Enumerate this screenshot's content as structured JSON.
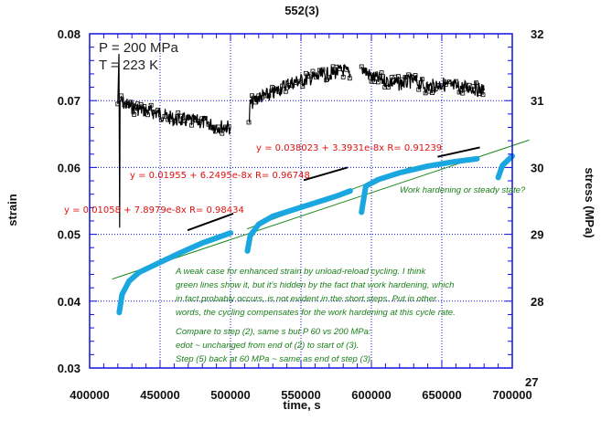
{
  "chart_data": {
    "type": "line",
    "title": "552(3)",
    "xlabel": "time, s",
    "ylabel": "strain",
    "y2label": "stress (MPa)",
    "xlim": [
      400000,
      700000
    ],
    "ylim": [
      0.03,
      0.08
    ],
    "y2lim": [
      27,
      32
    ],
    "xticks": [
      "400000",
      "450000",
      "500000",
      "550000",
      "600000",
      "650000",
      "700000"
    ],
    "yticks": [
      "0.08",
      "0.07",
      "0.06",
      "0.05",
      "0.04",
      "0.03"
    ],
    "y2ticks": [
      "32",
      "31",
      "30",
      "29",
      "28",
      "27"
    ],
    "grid": true,
    "conditions": [
      "P = 200 MPa",
      "T = 223 K"
    ],
    "series": [
      {
        "name": "stress",
        "axis": "right",
        "color": "#000000",
        "segments": [
          [
            [
              420000,
              30.95
            ],
            [
              420800,
              31.7
            ],
            [
              421300,
              29.1
            ],
            [
              421600,
              31.0
            ],
            [
              425000,
              30.95
            ],
            [
              430000,
              30.9
            ],
            [
              440000,
              30.85
            ],
            [
              450000,
              30.8
            ],
            [
              460000,
              30.72
            ],
            [
              470000,
              30.7
            ],
            [
              480000,
              30.68
            ],
            [
              490000,
              30.62
            ],
            [
              500000,
              30.6
            ]
          ],
          [
            [
              513000,
              30.6
            ],
            [
              514000,
              30.95
            ],
            [
              520000,
              31.05
            ],
            [
              530000,
              31.1
            ],
            [
              540000,
              31.25
            ],
            [
              550000,
              31.3
            ],
            [
              560000,
              31.35
            ],
            [
              570000,
              31.4
            ],
            [
              580000,
              31.45
            ],
            [
              585000,
              31.4
            ]
          ],
          [
            [
              593000,
              31.5
            ],
            [
              600000,
              31.35
            ],
            [
              610000,
              31.3
            ],
            [
              620000,
              31.25
            ],
            [
              630000,
              31.3
            ],
            [
              640000,
              31.2
            ],
            [
              650000,
              31.25
            ],
            [
              660000,
              31.2
            ],
            [
              670000,
              31.2
            ],
            [
              680000,
              31.15
            ]
          ]
        ]
      },
      {
        "name": "strain",
        "axis": "left",
        "color": "#1aa7e0",
        "segments": [
          [
            [
              421000,
              0.0383
            ],
            [
              423000,
              0.041
            ],
            [
              428000,
              0.043
            ],
            [
              435000,
              0.0443
            ],
            [
              450000,
              0.0458
            ],
            [
              465000,
              0.0473
            ],
            [
              480000,
              0.0487
            ],
            [
              500000,
              0.0502
            ]
          ],
          [
            [
              512000,
              0.0475
            ],
            [
              514000,
              0.0498
            ],
            [
              520000,
              0.0515
            ],
            [
              530000,
              0.0527
            ],
            [
              545000,
              0.0537
            ],
            [
              560000,
              0.0547
            ],
            [
              575000,
              0.0557
            ],
            [
              585000,
              0.0565
            ]
          ],
          [
            [
              593000,
              0.0533
            ],
            [
              596000,
              0.0572
            ],
            [
              605000,
              0.0582
            ],
            [
              620000,
              0.0592
            ],
            [
              640000,
              0.0602
            ],
            [
              660000,
              0.0609
            ],
            [
              675000,
              0.0613
            ]
          ],
          [
            [
              690000,
              0.0585
            ],
            [
              693000,
              0.0603
            ],
            [
              700000,
              0.0617
            ]
          ]
        ]
      }
    ],
    "green_lines": [
      [
        [
          416000,
          0.0433
        ],
        [
          712000,
          0.0641
        ]
      ],
      [
        [
          511700,
          0.0508
        ],
        [
          628500,
          0.0601
        ]
      ]
    ],
    "fit_lines": [
      [
        [
          469500,
          0.0506
        ],
        [
          502000,
          0.0531
        ]
      ],
      [
        [
          552000,
          0.0581
        ],
        [
          583000,
          0.06
        ]
      ],
      [
        [
          647000,
          0.0616
        ],
        [
          677000,
          0.063
        ]
      ]
    ],
    "fits": [
      "y = 0.01058 + 7.8979e-8x   R= 0.98434",
      "y = 0.01955 + 6.2495e-8x   R= 0.96748",
      "y = 0.038023 + 3.3931e-8x   R= 0.91239"
    ],
    "annotations": {
      "steady": "Work hardening or steady state?",
      "para": [
        "A weak case for enhanced strain by unload-reload cycling.  I think",
        "green lines show it, but it's hidden by the fact that work hardening, which",
        "in fact probably occurs, is not evident in the short steps.  Put in other",
        "words, the cycling compensates for the work hardening at this cycle rate."
      ],
      "compare": [
        "Compare to step (2), same  s but P 60 vs 200 MPa:",
        "edot ~ unchanged from end of (2) to start of (3).",
        "Step (5) back at 60 MPa ~ same as end of step (3)."
      ]
    }
  }
}
